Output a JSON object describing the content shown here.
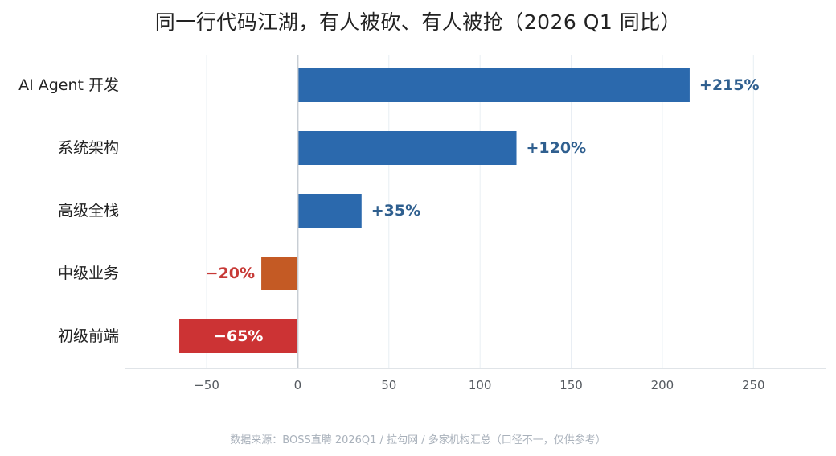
{
  "chart_data": {
    "type": "bar",
    "orientation": "horizontal",
    "title": "同一行代码江湖，有人被砍、有人被抢（2026 Q1 同比）",
    "categories": [
      "AI Agent 开发",
      "系统架构",
      "高级全栈",
      "中级业务",
      "初级前端"
    ],
    "values": [
      215,
      120,
      35,
      -20,
      -65
    ],
    "value_labels": [
      "+215%",
      "+120%",
      "+35%",
      "−20%",
      "−65%"
    ],
    "xlim": [
      -95,
      290
    ],
    "xticks": [
      -50,
      0,
      50,
      100,
      150,
      200,
      250
    ],
    "xtick_labels": [
      "−50",
      "0",
      "50",
      "100",
      "150",
      "200",
      "250"
    ],
    "xlabel": "",
    "ylabel": "",
    "grid": "vertical",
    "legend": "none",
    "colors": {
      "positive": "#2b69ad",
      "moderate_negative": "#c45a24",
      "strong_negative": "#cc3334",
      "positive_label": "#2f5f8f",
      "negative_label": "#c73a37",
      "inside_label": "#ffffff",
      "gridline": "#e8eef3",
      "zero_line": "#c8ced4",
      "axis_line": "#d5dbe0"
    },
    "bar_colors": [
      "#2b69ad",
      "#2b69ad",
      "#2b69ad",
      "#c45a24",
      "#cc3334"
    ],
    "source": "数据来源：BOSS直聘 2026Q1 / 拉勾网 / 多家机构汇总（口径不一，仅供参考）"
  }
}
